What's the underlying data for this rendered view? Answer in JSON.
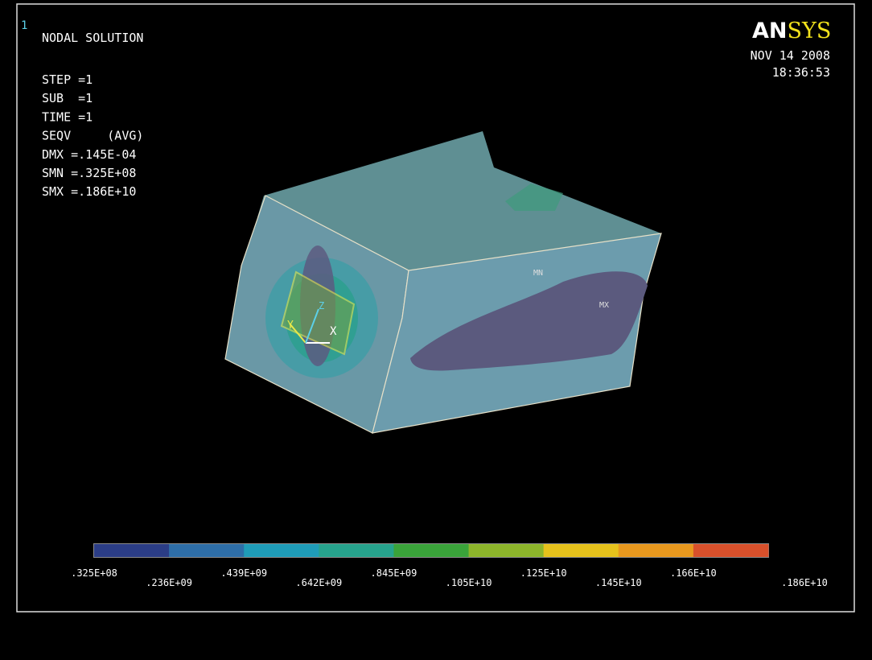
{
  "window_number": "1",
  "header": {
    "title": "NODAL SOLUTION",
    "logo_left": "AN",
    "logo_right": "SYS",
    "date": "NOV 14 2008",
    "time": "18:36:53"
  },
  "info_lines": [
    "STEP =1",
    "SUB  =1",
    "TIME =1",
    "SEQV     (AVG)",
    "DMX =.145E-04",
    "SMN =.325E+08",
    "SMX =.186E+10"
  ],
  "model_labels": {
    "min": "MN",
    "max": "MX",
    "x_axis": "X",
    "y_axis": "Y",
    "z_axis": "Z"
  },
  "legend": {
    "colors": [
      "#2b3d86",
      "#2e6ea8",
      "#1f9cb8",
      "#27a38d",
      "#3aa33a",
      "#8db52b",
      "#e6c21c",
      "#e8981e",
      "#d8502b"
    ],
    "labels": [
      ".325E+08",
      ".236E+09",
      ".439E+09",
      ".642E+09",
      ".845E+09",
      ".105E+10",
      ".125E+10",
      ".145E+10",
      ".166E+10",
      ".186E+10"
    ]
  }
}
